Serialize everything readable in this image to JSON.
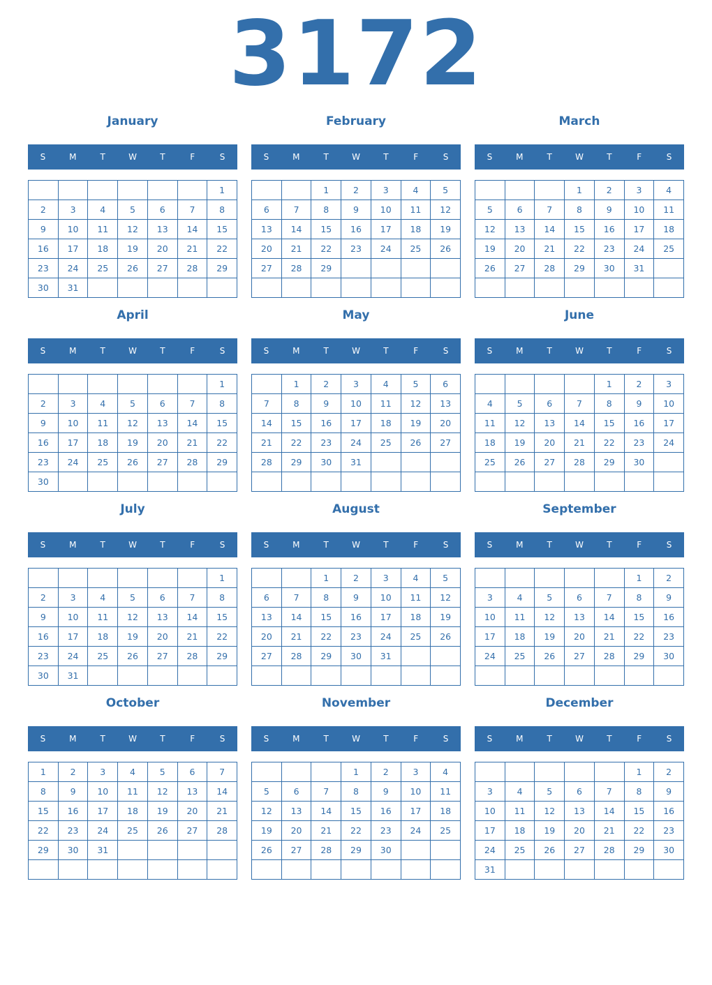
{
  "year": "3172",
  "weekdays": [
    "S",
    "M",
    "T",
    "W",
    "T",
    "F",
    "S"
  ],
  "months": [
    {
      "name": "January",
      "start": 6,
      "days": 31
    },
    {
      "name": "February",
      "start": 2,
      "days": 29
    },
    {
      "name": "March",
      "start": 3,
      "days": 31
    },
    {
      "name": "April",
      "start": 6,
      "days": 30
    },
    {
      "name": "May",
      "start": 1,
      "days": 31
    },
    {
      "name": "June",
      "start": 4,
      "days": 30
    },
    {
      "name": "July",
      "start": 6,
      "days": 31
    },
    {
      "name": "August",
      "start": 2,
      "days": 31
    },
    {
      "name": "September",
      "start": 5,
      "days": 30
    },
    {
      "name": "October",
      "start": 0,
      "days": 31
    },
    {
      "name": "November",
      "start": 3,
      "days": 30
    },
    {
      "name": "December",
      "start": 5,
      "days": 31
    }
  ],
  "colors": {
    "accent": "#336fab",
    "header_text": "#ffffff"
  }
}
